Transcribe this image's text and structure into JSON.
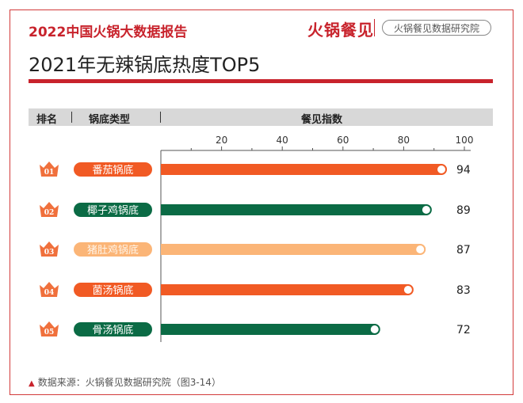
{
  "header": {
    "report_title": "2022中国火锅大数据报告",
    "brand": "火锅餐见",
    "brand_sub": "火锅餐见数据研究院"
  },
  "chart_title": "2021年无辣锅底热度TOP5",
  "table_header": {
    "rank": "排名",
    "type": "锅底类型",
    "index": "餐见指数"
  },
  "footnote": "数据来源：火锅餐见数据研究院（图3-14）",
  "colors": {
    "accent": "#c8232c",
    "orange": "#f15a24",
    "green": "#0b6b45",
    "light_orange": "#fbb577",
    "rank_badge": "#f0703c"
  },
  "chart_data": {
    "type": "bar",
    "orientation": "horizontal",
    "title": "2021年无辣锅底热度TOP5",
    "xlabel": "餐见指数",
    "xlim": [
      0,
      100
    ],
    "x_ticks": [
      20,
      40,
      60,
      80,
      100
    ],
    "categories": [
      "番茄锅底",
      "椰子鸡锅底",
      "猪肚鸡锅底",
      "菌汤锅底",
      "骨汤锅底"
    ],
    "ranks": [
      "01",
      "02",
      "03",
      "04",
      "05"
    ],
    "values": [
      94,
      89,
      87,
      83,
      72
    ],
    "bar_colors": [
      "#f15a24",
      "#0b6b45",
      "#fbb577",
      "#f15a24",
      "#0b6b45"
    ],
    "grid": false
  }
}
